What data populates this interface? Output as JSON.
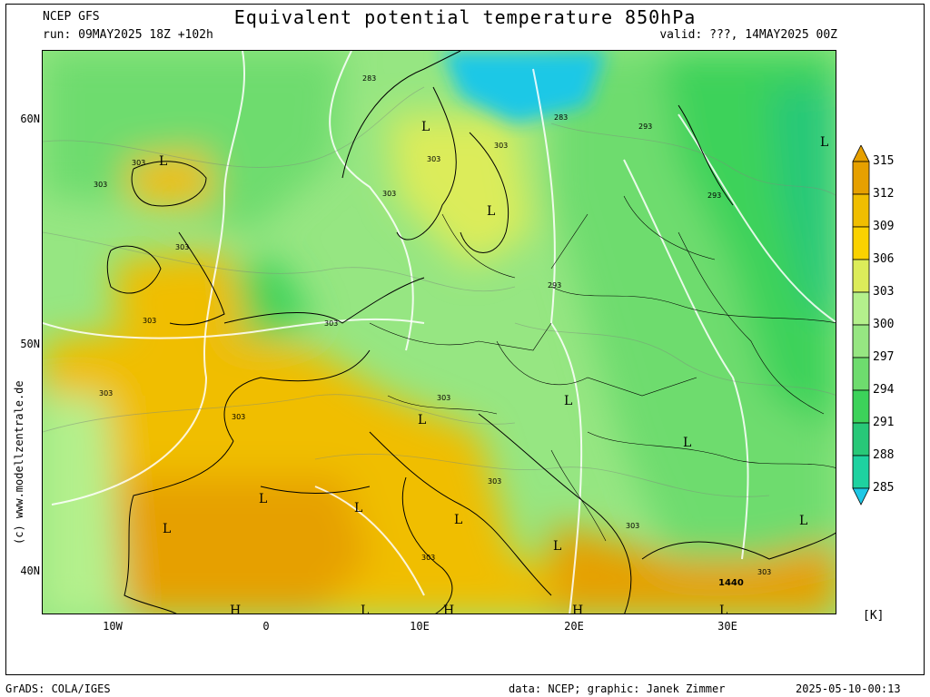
{
  "header": {
    "model": "NCEP GFS",
    "run": "run: 09MAY2025 18Z +102h",
    "title": "Equivalent potential temperature 850hPa",
    "valid": "valid: ???, 14MAY2025 00Z"
  },
  "axes": {
    "lat_labels": [
      "60N",
      "50N",
      "40N"
    ],
    "lon_labels": [
      "10W",
      "0",
      "10E",
      "20E",
      "30E"
    ]
  },
  "credit": "(c) www.modellzentrale.de",
  "colorbar": {
    "unit": "[K]",
    "levels": [
      "315",
      "312",
      "309",
      "306",
      "303",
      "300",
      "297",
      "294",
      "291",
      "288",
      "285"
    ],
    "colors": [
      "#e6a000",
      "#f0be00",
      "#fad200",
      "#dcec5a",
      "#b4f08c",
      "#96e682",
      "#6edc6e",
      "#3cd25a",
      "#28c878",
      "#1ed2a0",
      "#1ec8e6"
    ]
  },
  "map": {
    "pressure_symbols": [
      {
        "label": "L"
      },
      {
        "label": "L"
      },
      {
        "label": "L"
      },
      {
        "label": "L"
      },
      {
        "label": "L"
      },
      {
        "label": "L"
      },
      {
        "label": "L"
      },
      {
        "label": "L"
      },
      {
        "label": "L"
      },
      {
        "label": "L"
      },
      {
        "label": "L"
      },
      {
        "label": "L"
      },
      {
        "label": "L"
      },
      {
        "label": "L"
      },
      {
        "label": "L"
      },
      {
        "label": "H"
      },
      {
        "label": "H"
      },
      {
        "label": "H"
      }
    ],
    "contour_labels": [
      "283",
      "303",
      "303",
      "303",
      "303",
      "303",
      "303",
      "303",
      "303",
      "303",
      "303",
      "303",
      "303",
      "303",
      "303",
      "283",
      "293",
      "293",
      "293",
      "1440",
      "303"
    ]
  },
  "footer": {
    "left": "GrADS: COLA/IGES",
    "data": "data: NCEP; graphic: Janek Zimmer",
    "timestamp": "2025-05-10-00:13"
  }
}
